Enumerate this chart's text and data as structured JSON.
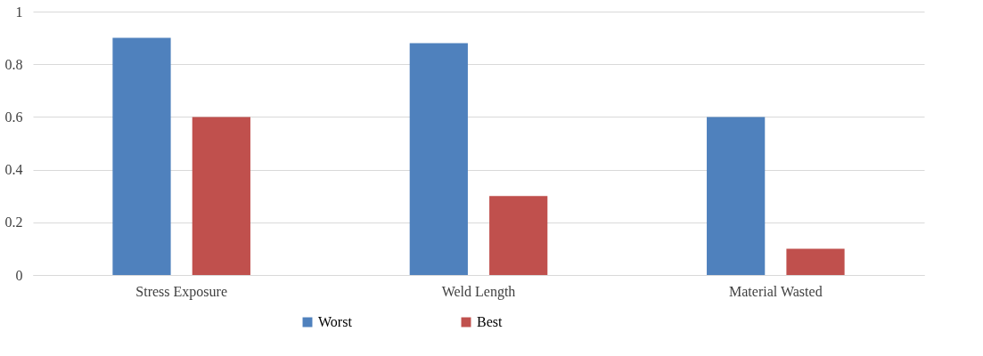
{
  "chart_data": {
    "type": "bar",
    "categories": [
      "Stress Exposure",
      "Weld Length",
      "Material Wasted"
    ],
    "series": [
      {
        "name": "Worst",
        "color": "#4f81bd",
        "values": [
          0.9,
          0.88,
          0.6
        ]
      },
      {
        "name": "Best",
        "color": "#c0504d",
        "values": [
          0.6,
          0.3,
          0.1
        ]
      }
    ],
    "ylim": [
      0,
      1
    ],
    "yticks": [
      0,
      0.2,
      0.4,
      0.6,
      0.8,
      1
    ],
    "grid": "y",
    "legend": "bottom"
  }
}
